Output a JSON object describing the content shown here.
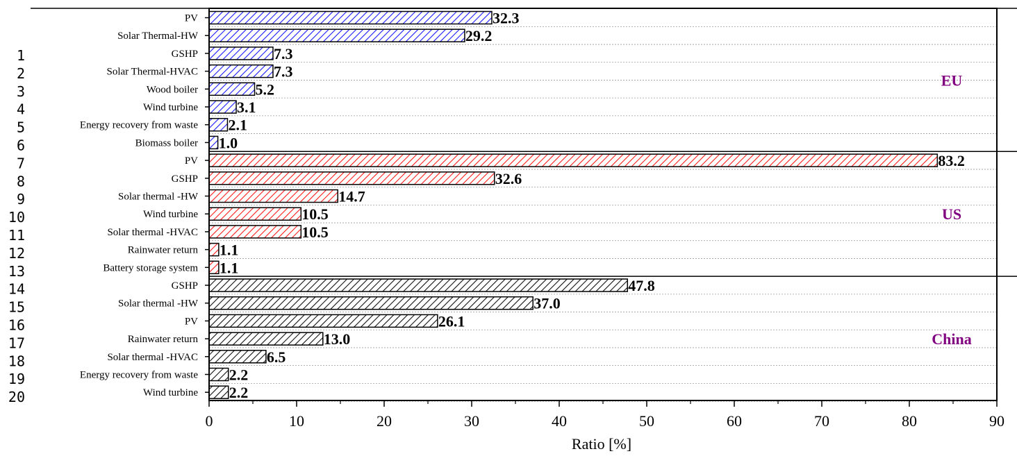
{
  "line_numbers": [
    "1",
    "2",
    "3",
    "4",
    "5",
    "6",
    "7",
    "8",
    "9",
    "10",
    "11",
    "12",
    "13",
    "14",
    "15",
    "16",
    "17",
    "18",
    "19",
    "20"
  ],
  "colors": {
    "EU": "#1a1aff",
    "US": "#ff1a1a",
    "China": "#111111",
    "region_label": "#800080"
  },
  "chart_data": {
    "type": "bar",
    "orientation": "horizontal",
    "xlabel": "Ratio [%]",
    "xlim": [
      0,
      90
    ],
    "xticks": [
      0,
      10,
      20,
      30,
      40,
      50,
      60,
      70,
      80,
      90
    ],
    "grid": "horizontal dotted",
    "groups": [
      {
        "name": "EU",
        "categories": [
          "PV",
          "Solar Thermal-HW",
          "GSHP",
          "Solar Thermal-HVAC",
          "Wood boiler",
          "Wind turbine",
          "Energy recovery from waste",
          "Biomass boiler"
        ],
        "values": [
          32.3,
          29.2,
          7.3,
          7.3,
          5.2,
          3.1,
          2.1,
          1.0
        ],
        "labels": [
          "32.3",
          "29.2",
          "7.3",
          "7.3",
          "5.2",
          "3.1",
          "2.1",
          "1.0"
        ]
      },
      {
        "name": "US",
        "categories": [
          "PV",
          "GSHP",
          "Solar thermal -HW",
          "Wind turbine",
          "Solar thermal -HVAC",
          "Rainwater return",
          "Battery storage system"
        ],
        "values": [
          83.2,
          32.6,
          14.7,
          10.5,
          10.5,
          1.1,
          1.1
        ],
        "labels": [
          "83.2",
          "32.6",
          "14.7",
          "10.5",
          "10.5",
          "1.1",
          "1.1"
        ]
      },
      {
        "name": "China",
        "categories": [
          "GSHP",
          "Solar thermal -HW",
          "PV",
          "Rainwater return",
          "Solar thermal -HVAC",
          "Energy recovery from waste",
          "Wind turbine"
        ],
        "values": [
          47.8,
          37.0,
          26.1,
          13.0,
          6.5,
          2.2,
          2.2
        ],
        "labels": [
          "47.8",
          "37.0",
          "26.1",
          "13.0",
          "6.5",
          "2.2",
          "2.2"
        ]
      }
    ]
  }
}
